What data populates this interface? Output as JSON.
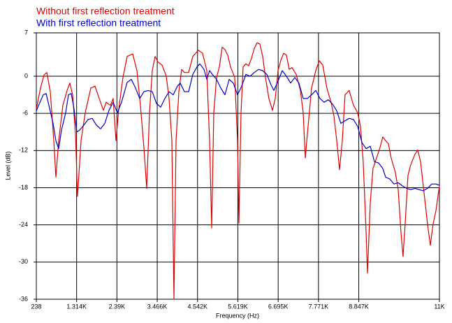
{
  "chart_data": {
    "type": "line",
    "xlabel": "Frequency (Hz)",
    "ylabel": "Level (dB)",
    "xlim": [
      238,
      11000
    ],
    "ylim": [
      -36,
      7
    ],
    "xticks": [
      238,
      {
        "value": 1314,
        "label": "1.314K"
      },
      {
        "value": 2390,
        "label": "2.39K"
      },
      {
        "value": 3466,
        "label": "3.466K"
      },
      {
        "value": 4542,
        "label": "4.542K"
      },
      {
        "value": 5619,
        "label": "5.619K"
      },
      {
        "value": 6695,
        "label": "6.695K"
      },
      {
        "value": 7771,
        "label": "7.771K"
      },
      {
        "value": 8847,
        "label": "8.847K"
      },
      {
        "value": 11000,
        "label": "11K"
      }
    ],
    "yticks": [
      7,
      0,
      -6,
      -12,
      -18,
      -24,
      -30,
      -36
    ],
    "grid": true,
    "series": [
      {
        "name": "Without first reflection treatment",
        "color": "#dd0000",
        "x": [
          238,
          350,
          443,
          518,
          611,
          704,
          760,
          835,
          947,
          1059,
          1133,
          1208,
          1282,
          1338,
          1432,
          1544,
          1693,
          1805,
          1917,
          2028,
          2103,
          2215,
          2290,
          2364,
          2439,
          2551,
          2663,
          2812,
          2924,
          3017,
          3110,
          3185,
          3259,
          3334,
          3409,
          3483,
          3595,
          3707,
          3782,
          3856,
          3912,
          3968,
          4043,
          4117,
          4192,
          4304,
          4416,
          4565,
          4677,
          4789,
          4863,
          4919,
          4975,
          5050,
          5124,
          5199,
          5274,
          5348,
          5423,
          5535,
          5609,
          5647,
          5702,
          5758,
          5833,
          5908,
          5982,
          6057,
          6131,
          6206,
          6281,
          6355,
          6448,
          6542,
          6616,
          6691,
          6766,
          6840,
          6915,
          6989,
          7064,
          7176,
          7288,
          7362,
          7418,
          7474,
          7586,
          7698,
          7791,
          7885,
          7996,
          8108,
          8183,
          8258,
          8332,
          8407,
          8481,
          8593,
          8705,
          8817,
          8892,
          8966,
          9041,
          9078,
          9153,
          9227,
          9339,
          9414,
          9488,
          9563,
          9638,
          9712,
          9824,
          9899,
          9973,
          10029,
          10085,
          10160,
          10234,
          10346,
          10421,
          10496,
          10570,
          10682,
          10757,
          10831,
          10906,
          11000
        ],
        "values": [
          -5.3,
          -1.9,
          0.2,
          0.6,
          -2.5,
          -10.4,
          -16.3,
          -10.4,
          -4.7,
          -2.3,
          -1.1,
          -3.0,
          -9.3,
          -19.4,
          -10.4,
          -5.9,
          -1.9,
          -1.6,
          -3.6,
          -5.5,
          -4.2,
          -4.7,
          -3.6,
          -10.4,
          -5.3,
          -0.2,
          3.2,
          3.6,
          0.9,
          -4.7,
          -11.5,
          -18.1,
          -5.9,
          0.9,
          3.2,
          2.3,
          1.8,
          0,
          -3.6,
          -10.4,
          -36,
          -10.4,
          -2.5,
          1.1,
          0.6,
          0.6,
          3.2,
          4.2,
          3.7,
          0.9,
          -10.4,
          -24.5,
          -5.9,
          -0.2,
          1.5,
          4.7,
          4.3,
          3.4,
          1.5,
          -0.2,
          -10.4,
          -23.7,
          -5.9,
          1.5,
          2.0,
          1.7,
          2.9,
          4.5,
          5.4,
          5.2,
          3.2,
          -0.2,
          -3.6,
          -5.5,
          -3.6,
          0.9,
          2.6,
          3.7,
          3.4,
          1.1,
          1.4,
          0.3,
          -2.3,
          -5.9,
          -13.2,
          -9.3,
          -1.9,
          0.9,
          2.5,
          1.8,
          -1.9,
          -4.2,
          -6.4,
          -10.4,
          -15.1,
          -10.4,
          -3.0,
          -2.3,
          -4.7,
          -5.9,
          -8.1,
          -13.8,
          -25.1,
          -31.8,
          -20.5,
          -14.9,
          -12.9,
          -11.5,
          -9.8,
          -10.4,
          -10.9,
          -13.2,
          -15.5,
          -18.3,
          -25.1,
          -29.1,
          -23.9,
          -16.0,
          -14.3,
          -12.6,
          -11.9,
          -13.8,
          -17.7,
          -23.9,
          -27.3,
          -23.9,
          -21.7,
          -17.7
        ]
      },
      {
        "name": "With first reflection treatment",
        "color": "#0000cc",
        "x": [
          238,
          313,
          425,
          499,
          574,
          686,
          760,
          835,
          909,
          1021,
          1096,
          1171,
          1245,
          1320,
          1394,
          1506,
          1618,
          1730,
          1842,
          1954,
          2066,
          2178,
          2290,
          2401,
          2513,
          2663,
          2774,
          2886,
          2998,
          3110,
          3222,
          3334,
          3446,
          3558,
          3670,
          3782,
          3893,
          4005,
          4080,
          4192,
          4304,
          4416,
          4528,
          4602,
          4714,
          4789,
          4863,
          4938,
          5050,
          5162,
          5274,
          5385,
          5497,
          5609,
          5721,
          5833,
          5945,
          6057,
          6169,
          6281,
          6393,
          6504,
          6579,
          6691,
          6803,
          6915,
          7027,
          7139,
          7250,
          7362,
          7474,
          7586,
          7698,
          7810,
          7922,
          8034,
          8146,
          8258,
          8369,
          8481,
          8593,
          8705,
          8817,
          8929,
          9041,
          9153,
          9265,
          9377,
          9488,
          9563,
          9675,
          9787,
          9899,
          10011,
          10123,
          10234,
          10346,
          10458,
          10570,
          10682,
          10794,
          10906,
          11000
        ],
        "values": [
          -5.6,
          -4.5,
          -3.0,
          -2.8,
          -4.7,
          -7.6,
          -10.4,
          -11.7,
          -8.7,
          -5.9,
          -3.0,
          -2.8,
          -5.3,
          -9.0,
          -8.7,
          -7.9,
          -7.0,
          -6.8,
          -7.9,
          -8.5,
          -7.6,
          -5.5,
          -4.2,
          -5.9,
          -4.2,
          -1.0,
          -0.5,
          -1.9,
          -3.6,
          -2.5,
          -2.3,
          -2.5,
          -4.4,
          -5.0,
          -3.6,
          -2.5,
          -3.0,
          -1.6,
          -1.1,
          -2.5,
          -2.5,
          0.3,
          1.5,
          2.0,
          1.1,
          -0.5,
          0.9,
          0.3,
          -0.5,
          -1.9,
          -3.0,
          -0.5,
          -1.1,
          -3.0,
          -1.6,
          0.3,
          0,
          0.6,
          1.1,
          0.9,
          0.3,
          -1.4,
          -2.3,
          -0.8,
          0.9,
          0,
          -1.1,
          -0.2,
          -1.1,
          -3.6,
          -3.6,
          -3.0,
          -2.3,
          -3.6,
          -4.2,
          -3.8,
          -4.5,
          -5.6,
          -7.6,
          -7.2,
          -6.8,
          -7.0,
          -8.1,
          -10.7,
          -11.7,
          -11.3,
          -13.8,
          -14.0,
          -14.9,
          -16.3,
          -16.6,
          -17.4,
          -17.2,
          -17.7,
          -18.1,
          -18.3,
          -18.1,
          -18.3,
          -18.5,
          -18.1,
          -17.4,
          -17.4,
          -17.6
        ]
      }
    ]
  }
}
